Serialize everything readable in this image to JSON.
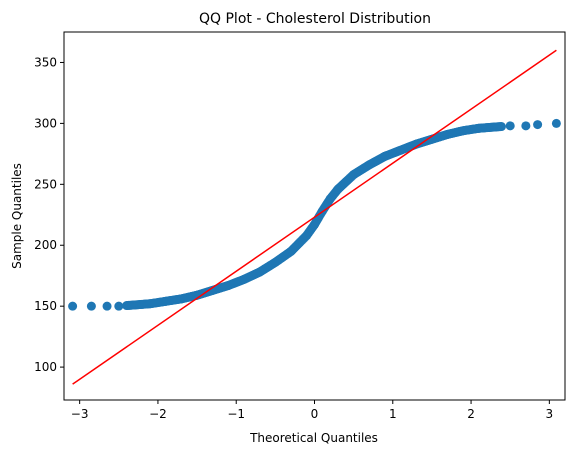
{
  "chart_data": {
    "type": "scatter",
    "title": "QQ Plot - Cholesterol Distribution",
    "xlabel": "Theoretical Quantiles",
    "ylabel": "Sample Quantiles",
    "xlim": [
      -3.2,
      3.2
    ],
    "ylim": [
      73,
      375
    ],
    "xticks": [
      -3,
      -2,
      -1,
      0,
      1,
      2,
      3
    ],
    "xtick_labels": [
      "−3",
      "−2",
      "−1",
      "0",
      "1",
      "2",
      "3"
    ],
    "yticks": [
      100,
      150,
      200,
      250,
      300,
      350
    ],
    "ytick_labels": [
      "100",
      "150",
      "200",
      "250",
      "300",
      "350"
    ],
    "grid": false,
    "points_color": "#1f77b4",
    "line_color": "#ff0000",
    "points_curve": [
      [
        -3.09,
        150
      ],
      [
        -2.85,
        150
      ],
      [
        -2.65,
        150
      ],
      [
        -2.5,
        150
      ],
      [
        -2.3,
        151
      ],
      [
        -2.1,
        152
      ],
      [
        -1.9,
        154
      ],
      [
        -1.7,
        156
      ],
      [
        -1.5,
        159
      ],
      [
        -1.3,
        163
      ],
      [
        -1.1,
        167
      ],
      [
        -0.9,
        172
      ],
      [
        -0.7,
        178
      ],
      [
        -0.5,
        186
      ],
      [
        -0.3,
        195
      ],
      [
        -0.1,
        208
      ],
      [
        0.0,
        217
      ],
      [
        0.1,
        228
      ],
      [
        0.2,
        238
      ],
      [
        0.3,
        246
      ],
      [
        0.5,
        258
      ],
      [
        0.7,
        266
      ],
      [
        0.9,
        273
      ],
      [
        1.1,
        278
      ],
      [
        1.3,
        283
      ],
      [
        1.5,
        287
      ],
      [
        1.7,
        291
      ],
      [
        1.9,
        294
      ],
      [
        2.1,
        296
      ],
      [
        2.3,
        297
      ],
      [
        2.5,
        298
      ],
      [
        2.7,
        298
      ],
      [
        2.85,
        299
      ],
      [
        3.09,
        300
      ]
    ],
    "reference_line": {
      "x": [
        -3.09,
        3.09
      ],
      "y": [
        86,
        360
      ]
    }
  }
}
